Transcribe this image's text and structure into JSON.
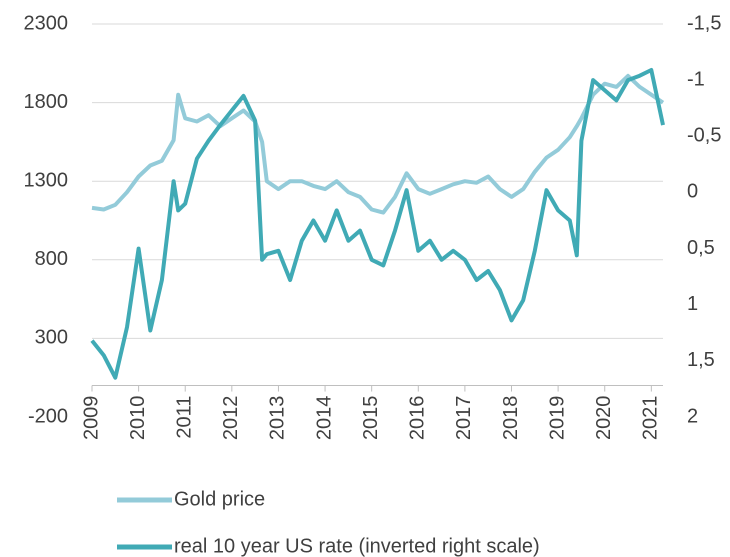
{
  "chart_data": {
    "type": "line",
    "x": [
      2009.0,
      2009.25,
      2009.5,
      2009.75,
      2010.0,
      2010.25,
      2010.5,
      2010.75,
      2010.85,
      2011.0,
      2011.25,
      2011.5,
      2011.75,
      2012.0,
      2012.25,
      2012.5,
      2012.65,
      2012.75,
      2013.0,
      2013.25,
      2013.5,
      2013.75,
      2014.0,
      2014.25,
      2014.5,
      2014.75,
      2015.0,
      2015.25,
      2015.5,
      2015.75,
      2016.0,
      2016.25,
      2016.5,
      2016.75,
      2017.0,
      2017.25,
      2017.5,
      2017.75,
      2018.0,
      2018.25,
      2018.5,
      2018.75,
      2019.0,
      2019.25,
      2019.4,
      2019.5,
      2019.75,
      2020.0,
      2020.25,
      2020.5,
      2020.75,
      2021.0,
      2021.25
    ],
    "series": [
      {
        "name": "Gold price",
        "color": "#93cbd9",
        "axis": "y",
        "values": [
          1130,
          1120,
          1150,
          1230,
          1330,
          1400,
          1430,
          1560,
          1850,
          1700,
          1680,
          1720,
          1650,
          1700,
          1750,
          1680,
          1550,
          1300,
          1250,
          1300,
          1300,
          1270,
          1250,
          1300,
          1230,
          1200,
          1120,
          1100,
          1200,
          1350,
          1250,
          1220,
          1250,
          1280,
          1300,
          1290,
          1330,
          1250,
          1200,
          1250,
          1360,
          1450,
          1500,
          1580,
          1650,
          1700,
          1850,
          1920,
          1900,
          1970,
          1900,
          1850,
          1800
        ]
      },
      {
        "name": "real 10 year US rate (inverted right scale)",
        "color": "#40aab5",
        "axis": "y2",
        "values": [
          1.32,
          1.45,
          1.65,
          1.2,
          0.5,
          1.23,
          0.78,
          -0.1,
          0.16,
          0.1,
          -0.3,
          -0.46,
          -0.6,
          -0.73,
          -0.86,
          -0.64,
          0.6,
          0.55,
          0.52,
          0.78,
          0.43,
          0.25,
          0.43,
          0.16,
          0.43,
          0.34,
          0.6,
          0.65,
          0.34,
          -0.02,
          0.52,
          0.43,
          0.6,
          0.52,
          0.6,
          0.78,
          0.7,
          0.87,
          1.14,
          0.96,
          0.52,
          -0.02,
          0.16,
          0.25,
          0.56,
          -0.46,
          -1.0,
          -0.91,
          -0.82,
          -1.0,
          -1.04,
          -1.09,
          -0.6
        ]
      }
    ],
    "xlim": [
      2009,
      2021.25
    ],
    "xticks": [
      2009,
      2010,
      2011,
      2012,
      2013,
      2014,
      2015,
      2016,
      2017,
      2018,
      2019,
      2020,
      2021
    ],
    "ylim": [
      -200,
      2300
    ],
    "yticks": [
      -200,
      300,
      800,
      1300,
      1800,
      2300
    ],
    "y2lim": [
      -1.5,
      2
    ],
    "y2_inverted": true,
    "y2ticks": [
      {
        "value": -1.5,
        "label": "-1,5"
      },
      -1,
      {
        "value": -0.5,
        "label": "-0,5"
      },
      0,
      {
        "value": 0.5,
        "label": "0,5"
      },
      1,
      {
        "value": 1.5,
        "label": "1,5"
      },
      2
    ],
    "grid": true,
    "legend": "bottom"
  }
}
